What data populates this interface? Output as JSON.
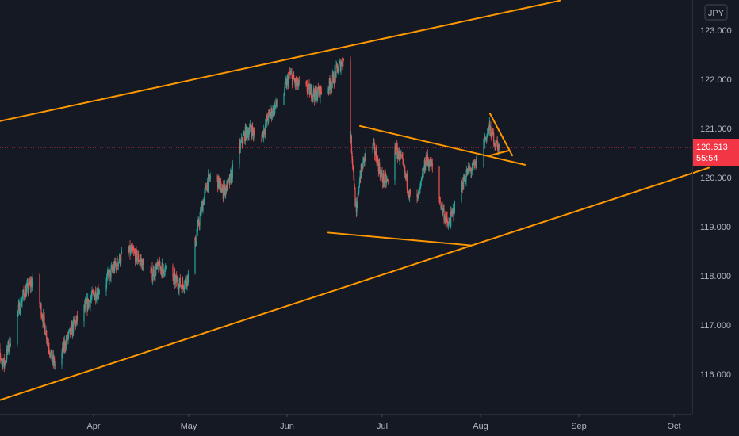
{
  "currency": "JPY",
  "last_price": {
    "value": 120.613,
    "label": "120.613",
    "countdown": "55:54"
  },
  "colors": {
    "background": "#151924",
    "up": "#26a69a",
    "down": "#ef5350",
    "drawing": "#ff9800",
    "price_badge": "#f23645",
    "axis_text": "#b2b5be"
  },
  "chart_data": {
    "type": "candlestick",
    "title": "",
    "xlabel": "",
    "ylabel": "",
    "ylim": [
      115.35,
      123.55
    ],
    "y_ticks": [
      {
        "value": 116,
        "label": "116.000"
      },
      {
        "value": 117,
        "label": "117.000"
      },
      {
        "value": 118,
        "label": "118.000"
      },
      {
        "value": 119,
        "label": "119.000"
      },
      {
        "value": 120,
        "label": "120.000"
      },
      {
        "value": 121,
        "label": "121.000"
      },
      {
        "value": 122,
        "label": "122.000"
      },
      {
        "value": 123,
        "label": "123.000"
      }
    ],
    "x_ticks": [
      "Apr",
      "May",
      "Jun",
      "Jul",
      "Aug",
      "Sep",
      "Oct"
    ],
    "grid": false,
    "price_path": [
      [
        "2021-03-01",
        116.6
      ],
      [
        "2021-03-04",
        116.2
      ],
      [
        "2021-03-07",
        117.0
      ],
      [
        "2021-03-10",
        117.6
      ],
      [
        "2021-03-13",
        117.9
      ],
      [
        "2021-03-15",
        117.5
      ],
      [
        "2021-03-17",
        116.9
      ],
      [
        "2021-03-19",
        116.3
      ],
      [
        "2021-03-21",
        116.1
      ],
      [
        "2021-03-23",
        116.6
      ],
      [
        "2021-03-26",
        117.0
      ],
      [
        "2021-03-29",
        117.3
      ],
      [
        "2021-04-01",
        117.6
      ],
      [
        "2021-04-04",
        117.8
      ],
      [
        "2021-04-07",
        118.1
      ],
      [
        "2021-04-10",
        118.4
      ],
      [
        "2021-04-13",
        118.5
      ],
      [
        "2021-04-16",
        118.3
      ],
      [
        "2021-04-19",
        118.0
      ],
      [
        "2021-04-22",
        118.2
      ],
      [
        "2021-04-24",
        118.1
      ],
      [
        "2021-04-27",
        117.9
      ],
      [
        "2021-04-29",
        117.8
      ],
      [
        "2021-05-01",
        118.0
      ],
      [
        "2021-05-03",
        118.6
      ],
      [
        "2021-05-05",
        119.3
      ],
      [
        "2021-05-07",
        119.9
      ],
      [
        "2021-05-09",
        120.1
      ],
      [
        "2021-05-12",
        119.7
      ],
      [
        "2021-05-14",
        119.9
      ],
      [
        "2021-05-16",
        120.4
      ],
      [
        "2021-05-19",
        120.9
      ],
      [
        "2021-05-21",
        121.0
      ],
      [
        "2021-05-23",
        120.6
      ],
      [
        "2021-05-26",
        121.2
      ],
      [
        "2021-05-29",
        121.5
      ],
      [
        "2021-05-31",
        121.7
      ],
      [
        "2021-06-02",
        122.1
      ],
      [
        "2021-06-04",
        121.9
      ],
      [
        "2021-06-07",
        121.8
      ],
      [
        "2021-06-10",
        121.7
      ],
      [
        "2021-06-13",
        121.8
      ],
      [
        "2021-06-15",
        121.9
      ],
      [
        "2021-06-17",
        122.2
      ],
      [
        "2021-06-19",
        122.4
      ],
      [
        "2021-06-20",
        122.1
      ],
      [
        "2021-06-21",
        121.0
      ],
      [
        "2021-06-22",
        120.2
      ],
      [
        "2021-06-23",
        119.2
      ],
      [
        "2021-06-24",
        120.0
      ],
      [
        "2021-06-26",
        120.5
      ],
      [
        "2021-06-27",
        120.8
      ],
      [
        "2021-06-29",
        120.5
      ],
      [
        "2021-07-01",
        120.0
      ],
      [
        "2021-07-03",
        119.9
      ],
      [
        "2021-07-05",
        120.6
      ],
      [
        "2021-07-07",
        120.4
      ],
      [
        "2021-07-09",
        119.9
      ],
      [
        "2021-07-11",
        119.3
      ],
      [
        "2021-07-13",
        119.7
      ],
      [
        "2021-07-15",
        120.4
      ],
      [
        "2021-07-17",
        120.2
      ],
      [
        "2021-07-19",
        119.6
      ],
      [
        "2021-07-21",
        119.2
      ],
      [
        "2021-07-22",
        119.0
      ],
      [
        "2021-07-24",
        119.4
      ],
      [
        "2021-07-26",
        119.8
      ],
      [
        "2021-07-28",
        120.1
      ],
      [
        "2021-07-30",
        120.2
      ],
      [
        "2021-08-01",
        120.4
      ],
      [
        "2021-08-02",
        120.7
      ],
      [
        "2021-08-04",
        121.0
      ],
      [
        "2021-08-06",
        120.7
      ],
      [
        "2021-08-07",
        120.6
      ]
    ],
    "series": [
      {
        "role": "channel-upper",
        "points": [
          [
            "2021-02-27",
            121.1
          ],
          [
            "2021-08-26",
            123.6
          ]
        ]
      },
      {
        "role": "channel-lower",
        "points": [
          [
            "2021-02-27",
            115.4
          ],
          [
            "2021-10-12",
            120.2
          ]
        ]
      },
      {
        "role": "triangle-upper",
        "points": [
          [
            "2021-06-24",
            121.05
          ],
          [
            "2021-08-15",
            120.26
          ]
        ]
      },
      {
        "role": "triangle-lower",
        "points": [
          [
            "2021-06-14",
            118.88
          ],
          [
            "2021-07-29",
            118.62
          ]
        ]
      },
      {
        "role": "flag-upper",
        "points": [
          [
            "2021-08-04",
            121.3
          ],
          [
            "2021-08-11",
            120.45
          ]
        ]
      },
      {
        "role": "flag-lower",
        "points": [
          [
            "2021-08-04",
            120.45
          ],
          [
            "2021-08-10",
            120.55
          ]
        ]
      }
    ]
  }
}
